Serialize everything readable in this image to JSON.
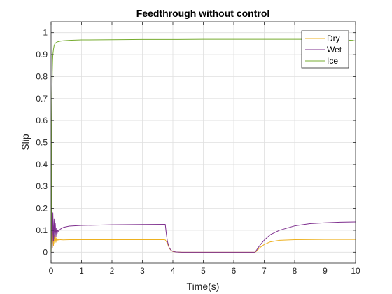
{
  "chart_data": {
    "type": "line",
    "title": "Feedthrough without control",
    "xlabel": "Time(s)",
    "ylabel": "Slip",
    "xlim": [
      0,
      10
    ],
    "ylim": [
      -0.05,
      1.05
    ],
    "xticks": [
      "0",
      "1",
      "2",
      "3",
      "4",
      "5",
      "6",
      "7",
      "8",
      "9",
      "10"
    ],
    "yticks": [
      "0",
      "0.1",
      "0.2",
      "0.3",
      "0.4",
      "0.5",
      "0.6",
      "0.7",
      "0.8",
      "0.9",
      "1"
    ],
    "grid": true,
    "legend_position": "top-right",
    "series": [
      {
        "name": "Dry",
        "color": "#EDB120",
        "x": [
          0,
          0.02,
          0.04,
          0.06,
          0.08,
          0.1,
          0.12,
          0.14,
          0.16,
          0.18,
          0.2,
          0.22,
          0.25,
          0.3,
          0.4,
          0.6,
          1,
          2,
          3,
          3.7,
          3.75,
          3.8,
          3.85,
          3.9,
          3.95,
          4.0,
          4.1,
          4.3,
          5,
          6,
          6.7,
          6.75,
          6.85,
          7.0,
          7.2,
          7.5,
          8,
          9,
          10
        ],
        "y": [
          0,
          0.12,
          0.02,
          0.09,
          0.03,
          0.08,
          0.04,
          0.07,
          0.045,
          0.065,
          0.05,
          0.06,
          0.055,
          0.057,
          0.056,
          0.057,
          0.057,
          0.057,
          0.057,
          0.057,
          0.056,
          0.045,
          0.03,
          0.015,
          0.007,
          0.003,
          0.001,
          0.0,
          0.0,
          0.0,
          0.0,
          0.005,
          0.02,
          0.035,
          0.047,
          0.054,
          0.057,
          0.058,
          0.058
        ]
      },
      {
        "name": "Wet",
        "color": "#7E2F8E",
        "x": [
          0,
          0.02,
          0.04,
          0.06,
          0.08,
          0.1,
          0.12,
          0.14,
          0.16,
          0.18,
          0.2,
          0.22,
          0.25,
          0.3,
          0.4,
          0.6,
          1,
          2,
          3,
          3.75,
          3.78,
          3.82,
          3.88,
          3.95,
          4.0,
          4.1,
          4.3,
          5,
          6,
          6.7,
          6.75,
          6.85,
          7.0,
          7.2,
          7.5,
          8,
          8.5,
          9,
          9.5,
          10
        ],
        "y": [
          0,
          0.3,
          0.02,
          0.18,
          0.05,
          0.15,
          0.06,
          0.13,
          0.07,
          0.11,
          0.085,
          0.1,
          0.095,
          0.105,
          0.113,
          0.119,
          0.122,
          0.125,
          0.126,
          0.127,
          0.09,
          0.05,
          0.02,
          0.008,
          0.004,
          0.001,
          0.0,
          0.0,
          0.0,
          0.0,
          0.01,
          0.03,
          0.055,
          0.08,
          0.1,
          0.12,
          0.13,
          0.134,
          0.137,
          0.138
        ]
      },
      {
        "name": "Ice",
        "color": "#77AC30",
        "x": [
          0,
          0.01,
          0.02,
          0.03,
          0.04,
          0.05,
          0.06,
          0.08,
          0.1,
          0.12,
          0.15,
          0.2,
          0.3,
          0.4,
          0.6,
          1,
          2,
          3,
          4,
          5,
          6,
          7,
          8,
          9,
          9.9,
          10
        ],
        "y": [
          0,
          0.15,
          0.55,
          0.72,
          0.82,
          0.87,
          0.9,
          0.925,
          0.94,
          0.948,
          0.953,
          0.958,
          0.961,
          0.963,
          0.965,
          0.967,
          0.968,
          0.969,
          0.969,
          0.97,
          0.97,
          0.97,
          0.97,
          0.97,
          0.965,
          0.962
        ]
      }
    ]
  }
}
